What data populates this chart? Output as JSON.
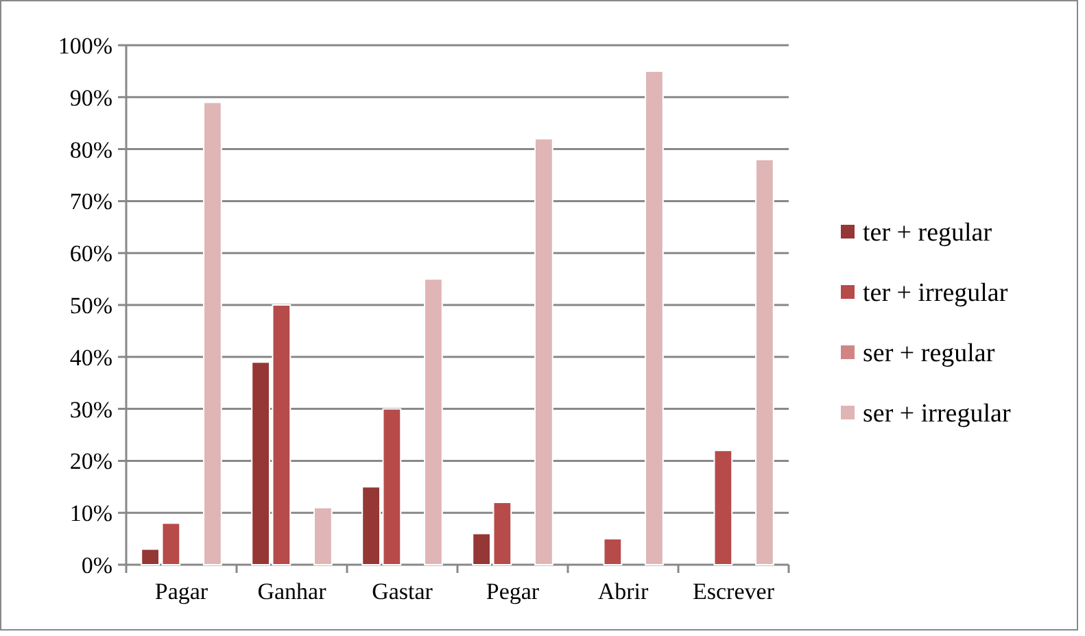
{
  "chart_data": {
    "type": "bar",
    "categories": [
      "Pagar",
      "Ganhar",
      "Gastar",
      "Pegar",
      "Abrir",
      "Escrever"
    ],
    "series": [
      {
        "name": "ter + regular",
        "color": "#953735",
        "values": [
          3,
          39,
          15,
          6,
          0,
          0
        ]
      },
      {
        "name": "ter + irregular",
        "color": "#b64b4a",
        "values": [
          8,
          50,
          30,
          12,
          5,
          22
        ]
      },
      {
        "name": "ser + regular",
        "color": "#d08584",
        "values": [
          0,
          0,
          0,
          0,
          0,
          0
        ]
      },
      {
        "name": "ser + irregular",
        "color": "#e0b5b5",
        "values": [
          89,
          11,
          55,
          82,
          95,
          78
        ]
      }
    ],
    "ylim": [
      0,
      100
    ],
    "yticks": [
      {
        "value": 0,
        "label": "0%"
      },
      {
        "value": 10,
        "label": "10%"
      },
      {
        "value": 20,
        "label": "20%"
      },
      {
        "value": 30,
        "label": "30%"
      },
      {
        "value": 40,
        "label": "40%"
      },
      {
        "value": 50,
        "label": "50%"
      },
      {
        "value": 60,
        "label": "60%"
      },
      {
        "value": 70,
        "label": "70%"
      },
      {
        "value": 80,
        "label": "80%"
      },
      {
        "value": 90,
        "label": "90%"
      },
      {
        "value": 100,
        "label": "100%"
      }
    ],
    "grid": "y",
    "legend": "right"
  }
}
